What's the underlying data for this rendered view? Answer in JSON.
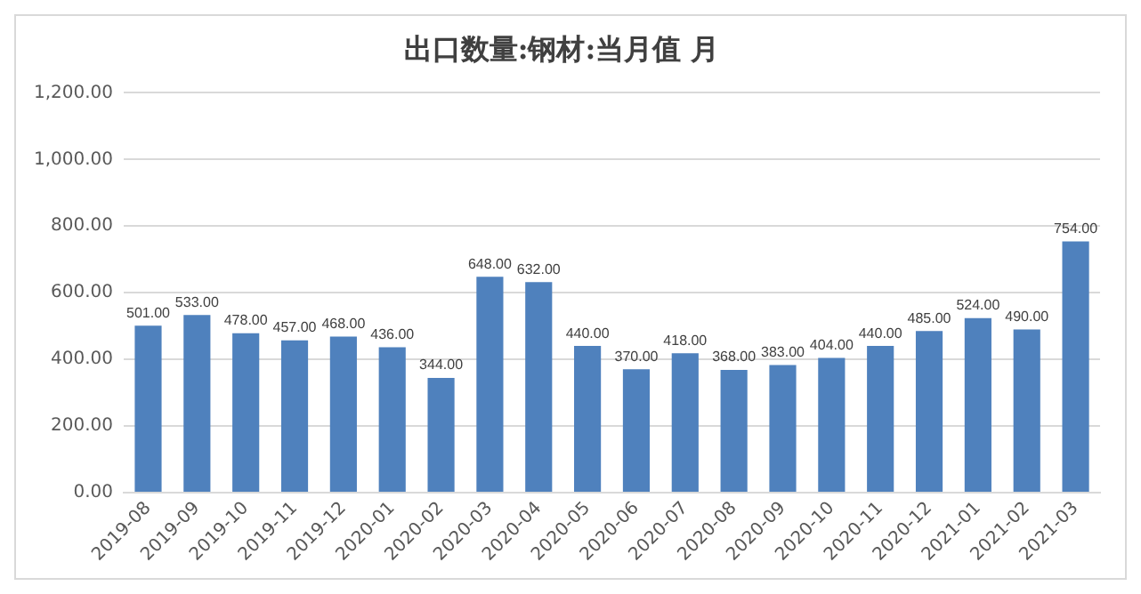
{
  "chart_data": {
    "type": "bar",
    "title": "出口数量:钢材:当月值 月",
    "categories": [
      "2019-08",
      "2019-09",
      "2019-10",
      "2019-11",
      "2019-12",
      "2020-01",
      "2020-02",
      "2020-03",
      "2020-04",
      "2020-05",
      "2020-06",
      "2020-07",
      "2020-08",
      "2020-09",
      "2020-10",
      "2020-11",
      "2020-12",
      "2021-01",
      "2021-02",
      "2021-03"
    ],
    "values": [
      501,
      533,
      478,
      457,
      468,
      436,
      344,
      648,
      632,
      440,
      370,
      418,
      368,
      383,
      404,
      440,
      485,
      524,
      490,
      754
    ],
    "value_labels": [
      "501.00",
      "533.00",
      "478.00",
      "457.00",
      "468.00",
      "436.00",
      "344.00",
      "648.00",
      "632.00",
      "440.00",
      "370.00",
      "418.00",
      "368.00",
      "383.00",
      "404.00",
      "440.00",
      "485.00",
      "524.00",
      "490.00",
      "754.00"
    ],
    "color": "#4f81bd",
    "ylim": [
      0,
      1200
    ],
    "yticks": [
      {
        "value": 0,
        "label": "0.00"
      },
      {
        "value": 200,
        "label": "200.00"
      },
      {
        "value": 400,
        "label": "400.00"
      },
      {
        "value": 600,
        "label": "600.00"
      },
      {
        "value": 800,
        "label": "800.00"
      },
      {
        "value": 1000,
        "label": "1,000.00"
      },
      {
        "value": 1200,
        "label": "1,200.00"
      }
    ],
    "grid": "y"
  }
}
